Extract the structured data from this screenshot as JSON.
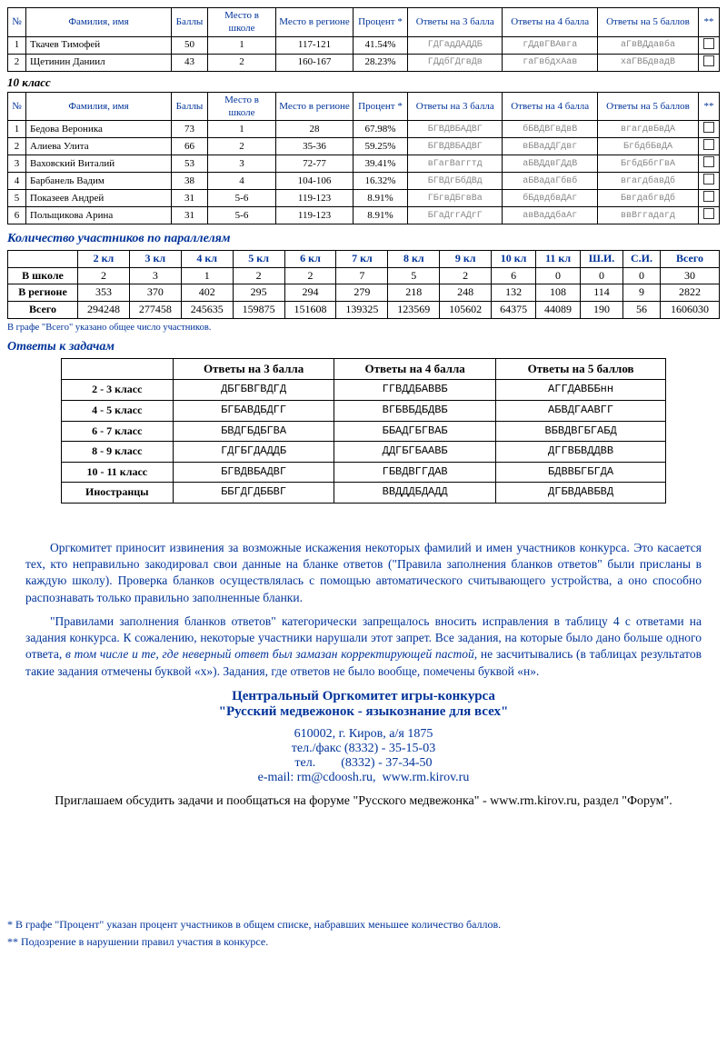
{
  "results_headers": {
    "num": "№",
    "name": "Фамилия, имя",
    "score": "Баллы",
    "school_place": "Место в школе",
    "region_place": "Место в регионе",
    "percent": "Процент *",
    "ans3": "Ответы на 3 балла",
    "ans4": "Ответы на 4 балла",
    "ans5": "Ответы на 5 баллов",
    "stars": "**"
  },
  "table9_rows": [
    {
      "n": "1",
      "name": "Ткачев Тимофей",
      "score": "50",
      "sp": "1",
      "rp": "117-121",
      "pct": "41.54%",
      "a3": "ГДГадДАДДБ",
      "a4": "гДдвГВАвга",
      "a5": "аГвВДдавба"
    },
    {
      "n": "2",
      "name": "Щетинин Даниил",
      "score": "43",
      "sp": "2",
      "rp": "160-167",
      "pct": "28.23%",
      "a3": "ГДдбГДгвДв",
      "a4": "гаГвбдхАав",
      "a5": "хаГВБдвадВ"
    }
  ],
  "grade10_title": "10 класс",
  "table10_rows": [
    {
      "n": "1",
      "name": "Бедова Вероника",
      "score": "73",
      "sp": "1",
      "rp": "28",
      "pct": "67.98%",
      "a3": "БГВДВБАДВГ",
      "a4": "бБВДВГвДвВ",
      "a5": "вгагдвБвДА"
    },
    {
      "n": "2",
      "name": "Алиева Улита",
      "score": "66",
      "sp": "2",
      "rp": "35-36",
      "pct": "59.25%",
      "a3": "БГВДВБАДВГ",
      "a4": "вБВадДГдвг",
      "a5": "БгбдбБвДА"
    },
    {
      "n": "3",
      "name": "Ваховский Виталий",
      "score": "53",
      "sp": "3",
      "rp": "72-77",
      "pct": "39.41%",
      "a3": "вГагВаггтд",
      "a4": "аБВДдвГДдВ",
      "a5": "БгбдБбгГвА"
    },
    {
      "n": "4",
      "name": "Барбанель Вадим",
      "score": "38",
      "sp": "4",
      "rp": "104-106",
      "pct": "16.32%",
      "a3": "БГВДгБбДВд",
      "a4": "аБВадаГбвб",
      "a5": "вгагдбавДб"
    },
    {
      "n": "5",
      "name": "Показеев Андрей",
      "score": "31",
      "sp": "5-6",
      "rp": "119-123",
      "pct": "8.91%",
      "a3": "ГБгвДБгвВа",
      "a4": "бБдвдбвДАг",
      "a5": "БвгдабгвДб"
    },
    {
      "n": "6",
      "name": "Польщикова Арина",
      "score": "31",
      "sp": "5-6",
      "rp": "119-123",
      "pct": "8.91%",
      "a3": "БГаДггАДгГ",
      "a4": "авВаддбаАг",
      "a5": "ввВггадагд"
    }
  ],
  "counts_title": "Количество участников по параллелям",
  "counts_headers": [
    "",
    "2 кл",
    "3 кл",
    "4 кл",
    "5 кл",
    "6 кл",
    "7 кл",
    "8 кл",
    "9 кл",
    "10 кл",
    "11 кл",
    "Ш.И.",
    "С.И.",
    "Всего"
  ],
  "counts_rows": [
    {
      "label": "В школе",
      "vals": [
        "2",
        "3",
        "1",
        "2",
        "2",
        "7",
        "5",
        "2",
        "6",
        "0",
        "0",
        "0",
        "30"
      ]
    },
    {
      "label": "В регионе",
      "vals": [
        "353",
        "370",
        "402",
        "295",
        "294",
        "279",
        "218",
        "248",
        "132",
        "108",
        "114",
        "9",
        "2822"
      ]
    },
    {
      "label": "Всего",
      "vals": [
        "294248",
        "277458",
        "245635",
        "159875",
        "151608",
        "139325",
        "123569",
        "105602",
        "64375",
        "44089",
        "190",
        "56",
        "1606030"
      ]
    }
  ],
  "counts_note": "В графе \"Всего\" указано общее число участников.",
  "answers_title": "Ответы к задачам",
  "answers_headers": [
    "",
    "Ответы на 3 балла",
    "Ответы на 4 балла",
    "Ответы на 5 баллов"
  ],
  "answers_rows": [
    {
      "label": "2 - 3 класс",
      "a": "ДБГБВГВДГД",
      "b": "ГГВДДБАВВБ",
      "c": "АГГДАВББнн"
    },
    {
      "label": "4 - 5 класс",
      "a": "БГБАВДБДГГ",
      "b": "ВГБВБДБДВБ",
      "c": "АБВДГААВГГ"
    },
    {
      "label": "6 - 7 класс",
      "a": "БВДГБДБГВА",
      "b": "ББАДГБГВАБ",
      "c": "ВБВДВГБГАБД"
    },
    {
      "label": "8 - 9 класс",
      "a": "ГДГБГДАДДБ",
      "b": "ДДГБГБААВБ",
      "c": "ДГГВБВДДВВ"
    },
    {
      "label": "10 - 11 класс",
      "a": "БГВДВБАДВГ",
      "b": "ГБВДВГГДАВ",
      "c": "БДВВБГБГДА"
    },
    {
      "label": "Иностранцы",
      "a": "ББГДГДББВГ",
      "b": "ВВДДДБДАДД",
      "c": "ДГБВДАВБВД"
    }
  ],
  "para1": "Оргкомитет приносит извинения за возможные искажения некоторых фамилий и имен участников конкурса. Это касается тех, кто неправильно закодировал свои данные на бланке ответов (\"Правила заполнения бланков ответов\" были присланы в каждую школу). Проверка бланков осуществлялась с помощью автоматического считывающего устройства, а оно способно распознавать только правильно заполненные бланки.",
  "para2_a": "\"Правилами заполнения бланков ответов\" категорически запрещалось вносить исправления в таблицу 4 с ответами на задания конкурса. К сожалению, некоторые участники нарушали этот запрет. Все задания, на которые было дано больше одного ответа, ",
  "para2_ital": "в том числе и те, где неверный ответ был замазан корректирующей пастой",
  "para2_b": ", не засчитывались (в таблицах результатов такие задания отмечены буквой «х»). Задания, где ответов не было вообще, помечены буквой «н».",
  "org_line1": "Центральный Оргкомитет игры-конкурса",
  "org_line2": "\"Русский медвежонок - языкознание для всех\"",
  "contact1": "610002, г. Киров, а/я 1875",
  "contact2": "тел./факс (8332) - 35-15-03",
  "contact3": "тел.        (8332) - 37-34-50",
  "contact4": "e-mail: rm@cdoosh.ru,  www.rm.kirov.ru",
  "invite": "Приглашаем обсудить задачи и пообщаться на форуме \"Русского медвежонка\" - www.rm.kirov.ru, раздел \"Форум\".",
  "footnote1": "* В графе \"Процент\" указан процент участников в общем списке, набравших меньшее количество баллов.",
  "footnote2": "** Подозрение в нарушении правил участия в конкурсе."
}
